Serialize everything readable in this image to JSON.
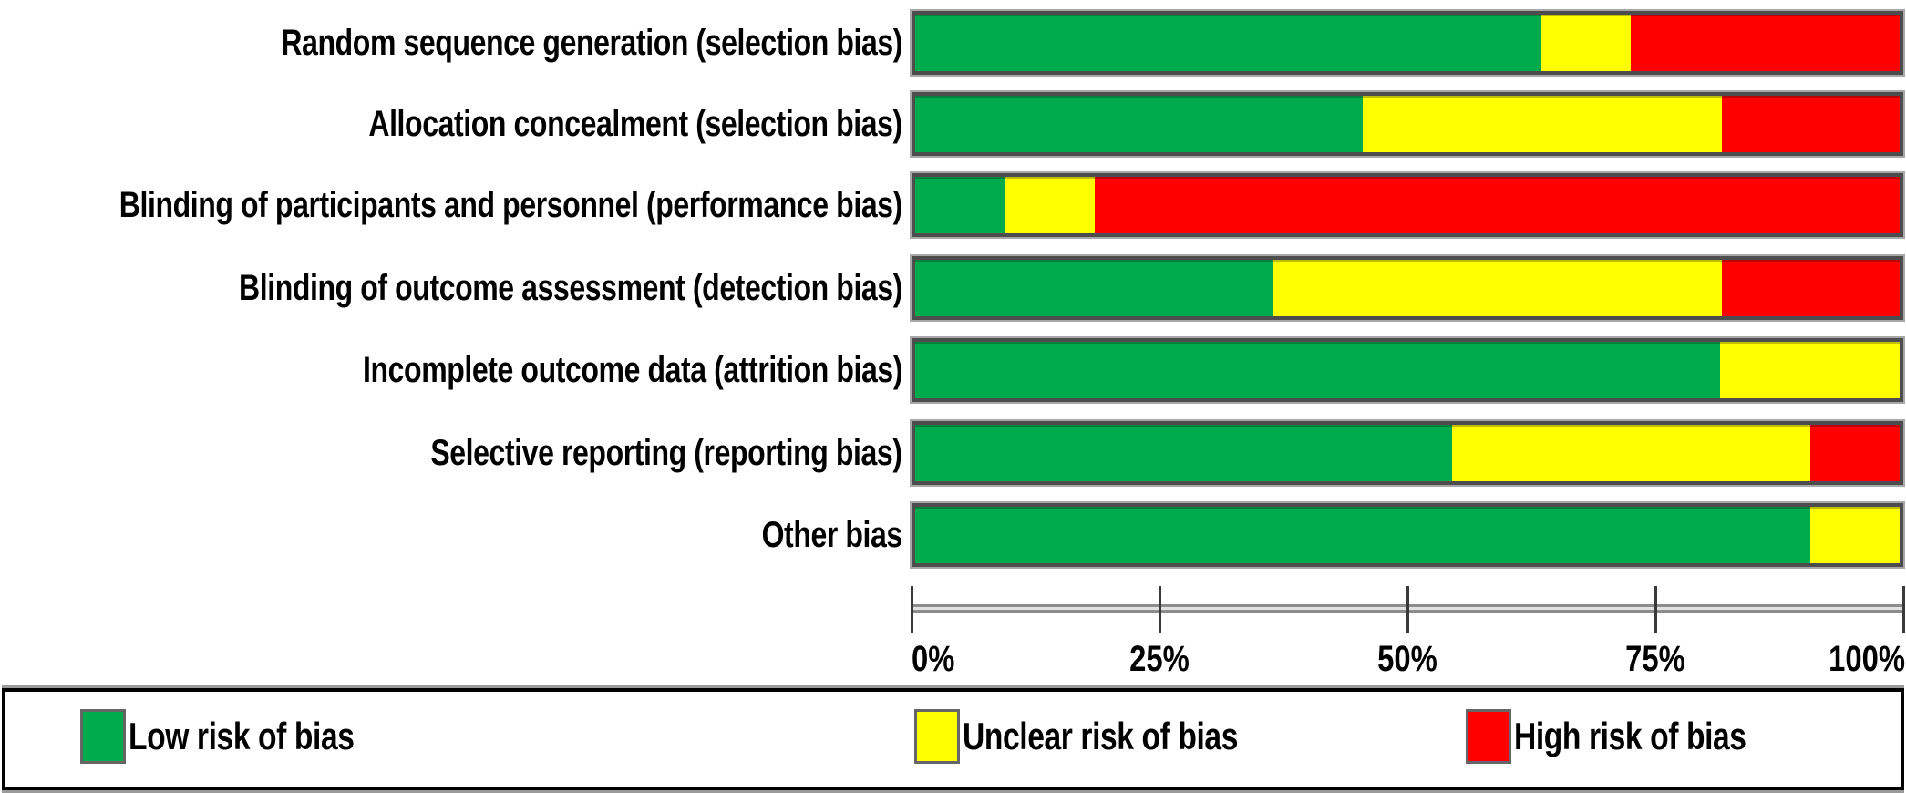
{
  "chart_data": {
    "type": "bar",
    "orientation": "horizontal",
    "stacked": true,
    "title": "",
    "xlabel": "",
    "ylabel": "",
    "grid": false,
    "legend_position": "bottom",
    "categories": [
      "Random sequence generation (selection bias)",
      "Allocation concealment (selection bias)",
      "Blinding of participants and personnel (performance bias)",
      "Blinding of outcome assessment (detection bias)",
      "Incomplete outcome data (attrition bias)",
      "Selective reporting (reporting bias)",
      "Other bias"
    ],
    "series": [
      {
        "name": "Low risk of bias",
        "color": "#00AB4E",
        "values_pct": [
          63.6,
          45.5,
          9.1,
          36.4,
          81.8,
          54.5,
          90.9
        ]
      },
      {
        "name": "Unclear risk of bias",
        "color": "#FFFF00",
        "values_pct": [
          9.1,
          36.4,
          9.1,
          45.5,
          18.2,
          36.4,
          9.1
        ]
      },
      {
        "name": "High risk of bias",
        "color": "#FF0000",
        "values_pct": [
          27.3,
          18.2,
          81.8,
          18.2,
          0.0,
          9.1,
          0.0
        ]
      }
    ],
    "x_axis": {
      "tick_labels": [
        "0%",
        "25%",
        "50%",
        "75%",
        "100%"
      ],
      "range": [
        0,
        100
      ]
    }
  },
  "legend": {
    "items": [
      {
        "label": "Low risk of bias",
        "color": "#00AB4E"
      },
      {
        "label": "Unclear risk of bias",
        "color": "#FFFF00"
      },
      {
        "label": "High risk of bias",
        "color": "#FF0000"
      }
    ]
  },
  "colors": {
    "low_risk": "#00AB4E",
    "unclear_risk": "#FFFF00",
    "high_risk": "#FF0000",
    "bar_border": "#4d4d4d",
    "bar_outer_edge": "#a8a8a8",
    "axis_line": "#8c8c8c",
    "tick": "#3a3a3a",
    "text": "#000000",
    "legend_border": "#000000",
    "background": "#ffffff"
  }
}
